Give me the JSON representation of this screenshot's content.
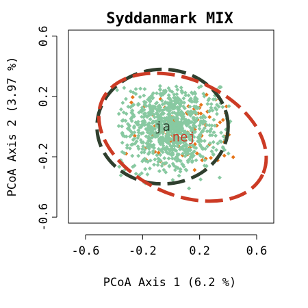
{
  "chart_data": {
    "type": "scatter",
    "title": "Syddanmark MIX",
    "xlabel": "PCoA Axis 1 (6.2 %)",
    "ylabel": "PCoA Axis 2 (3.97 %)",
    "xlim": [
      -0.72,
      0.72
    ],
    "ylim": [
      -0.64,
      0.64
    ],
    "x_ticks": [
      "-0.6",
      "-0.2",
      "0.2",
      "0.6"
    ],
    "x_tick_values": [
      -0.6,
      -0.2,
      0.2,
      0.6
    ],
    "y_ticks": [
      "-0.6",
      "-0.2",
      "0.2",
      "0.6"
    ],
    "y_tick_values": [
      -0.6,
      -0.2,
      0.2,
      0.6
    ],
    "grid": false,
    "series": [
      {
        "name": "ja",
        "color": "#88c9a1",
        "marker": "diamond",
        "centroid": [
          -0.06,
          0.0
        ],
        "ellipse": {
          "center": [
            -0.06,
            0.0
          ],
          "radii": [
            0.46,
            0.38
          ],
          "rotation_deg": 0,
          "color": "#2f3f2e",
          "dash": "long-dash"
        },
        "label_pos": [
          -0.06,
          0.0
        ],
        "cloud": {
          "center": [
            0.0,
            0.0
          ],
          "spread": [
            0.18,
            0.14
          ],
          "n": 900,
          "extent": {
            "x": [
              -0.38,
              0.42
            ],
            "y": [
              -0.5,
              0.27
            ]
          }
        }
      },
      {
        "name": "nej",
        "color": "#e5751a",
        "marker": "diamond",
        "centroid": [
          0.08,
          -0.07
        ],
        "ellipse": {
          "center": [
            0.08,
            -0.07
          ],
          "radii": [
            0.62,
            0.38
          ],
          "rotation_deg": -25,
          "color": "#cc3b25",
          "dash": "long-dash"
        },
        "label_pos": [
          0.09,
          -0.07
        ],
        "cloud": {
          "center": [
            0.08,
            -0.04
          ],
          "spread": [
            0.18,
            0.14
          ],
          "n": 90,
          "extent": {
            "x": [
              -0.34,
              0.44
            ],
            "y": [
              -0.37,
              0.24
            ]
          }
        }
      }
    ]
  }
}
